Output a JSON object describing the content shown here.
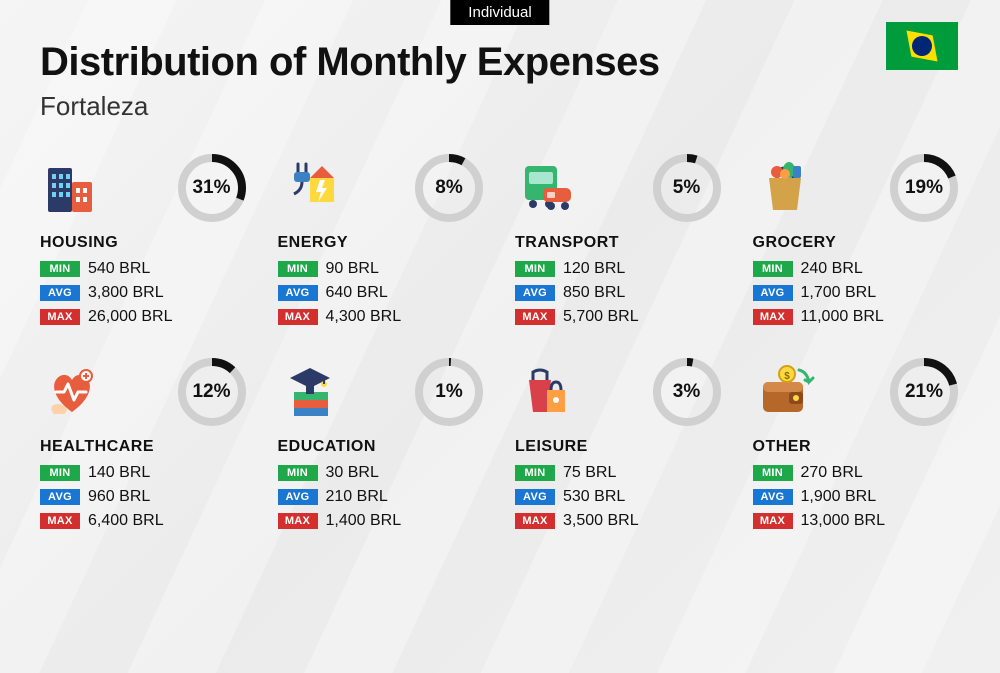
{
  "tag": "Individual",
  "title": "Distribution of Monthly Expenses",
  "subtitle": "Fortaleza",
  "currency": "BRL",
  "labels": {
    "min": "MIN",
    "avg": "AVG",
    "max": "MAX"
  },
  "colors": {
    "min": "#1fa84a",
    "avg": "#1976d2",
    "max": "#d32f2f",
    "ring_fg": "#111111",
    "ring_bg": "#d0d0d0",
    "background": "#f0f0f0"
  },
  "ring": {
    "radius": 30,
    "stroke": 8
  },
  "categories": [
    {
      "name": "HOUSING",
      "pct": 31,
      "min": "540",
      "avg": "3,800",
      "max": "26,000",
      "icon": "buildings"
    },
    {
      "name": "ENERGY",
      "pct": 8,
      "min": "90",
      "avg": "640",
      "max": "4,300",
      "icon": "energy"
    },
    {
      "name": "TRANSPORT",
      "pct": 5,
      "min": "120",
      "avg": "850",
      "max": "5,700",
      "icon": "transport"
    },
    {
      "name": "GROCERY",
      "pct": 19,
      "min": "240",
      "avg": "1,700",
      "max": "11,000",
      "icon": "grocery"
    },
    {
      "name": "HEALTHCARE",
      "pct": 12,
      "min": "140",
      "avg": "960",
      "max": "6,400",
      "icon": "health"
    },
    {
      "name": "EDUCATION",
      "pct": 1,
      "min": "30",
      "avg": "210",
      "max": "1,400",
      "icon": "education"
    },
    {
      "name": "LEISURE",
      "pct": 3,
      "min": "75",
      "avg": "530",
      "max": "3,500",
      "icon": "leisure"
    },
    {
      "name": "OTHER",
      "pct": 21,
      "min": "270",
      "avg": "1,900",
      "max": "13,000",
      "icon": "wallet"
    }
  ]
}
